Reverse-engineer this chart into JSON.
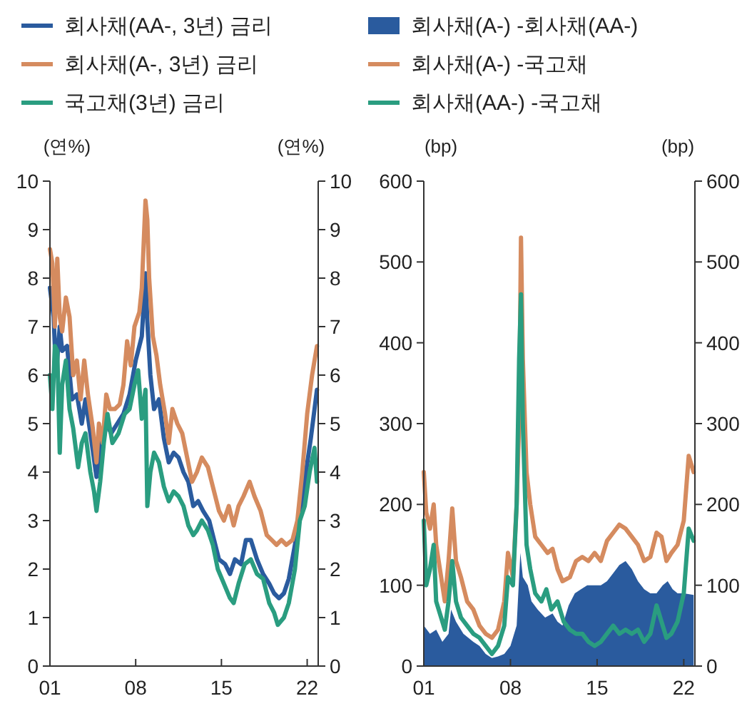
{
  "chart_data": [
    {
      "type": "line",
      "ylabel": "(연%)",
      "y2label": "(연%)",
      "legend": "top",
      "grid": false,
      "xlim": [
        2001,
        2022.9
      ],
      "xticks": [
        {
          "value": 2001,
          "label": "01"
        },
        {
          "value": 2008,
          "label": "08"
        },
        {
          "value": 2015,
          "label": "15"
        },
        {
          "value": 2022,
          "label": "22"
        }
      ],
      "ylim": [
        0,
        10
      ],
      "yticks": [
        0,
        1,
        2,
        3,
        4,
        5,
        6,
        7,
        8,
        9,
        10
      ],
      "y2lim": [
        0,
        10
      ],
      "y2ticks": [
        0,
        1,
        2,
        3,
        4,
        5,
        6,
        7,
        8,
        9,
        10
      ],
      "series": [
        {
          "name": "회사채(AA-, 3년) 금리",
          "color": "#2a5b9e",
          "x": [
            2001.0,
            2001.3,
            2001.5,
            2001.8,
            2002.0,
            2002.4,
            2002.8,
            2003.2,
            2003.6,
            2003.9,
            2004.3,
            2004.8,
            2005.2,
            2005.6,
            2006.0,
            2006.5,
            2007.0,
            2007.5,
            2008.0,
            2008.5,
            2008.8,
            2008.95,
            2009.2,
            2009.5,
            2009.9,
            2010.3,
            2010.7,
            2011.1,
            2011.5,
            2011.9,
            2012.3,
            2012.7,
            2013.1,
            2013.5,
            2014.0,
            2014.4,
            2014.8,
            2015.3,
            2015.7,
            2016.1,
            2016.6,
            2017.0,
            2017.4,
            2017.9,
            2018.4,
            2018.9,
            2019.3,
            2019.7,
            2020.1,
            2020.5,
            2021.0,
            2021.5,
            2021.9,
            2022.3,
            2022.8
          ],
          "values": [
            7.8,
            7.2,
            6.0,
            7.0,
            6.5,
            6.6,
            5.5,
            5.6,
            5.0,
            5.5,
            4.8,
            3.9,
            4.6,
            5.0,
            4.8,
            5.0,
            5.2,
            5.6,
            6.3,
            6.8,
            8.1,
            7.1,
            6.0,
            5.3,
            5.5,
            4.7,
            4.2,
            4.4,
            4.3,
            4.0,
            3.8,
            3.3,
            3.4,
            3.2,
            3.0,
            2.6,
            2.2,
            2.1,
            1.9,
            2.2,
            2.1,
            2.6,
            2.6,
            2.2,
            1.9,
            1.7,
            1.5,
            1.4,
            1.5,
            1.8,
            2.5,
            3.2,
            4.0,
            4.7,
            5.7
          ]
        },
        {
          "name": "회사채(A-, 3년) 금리",
          "color": "#d58b5f",
          "x": [
            2001.0,
            2001.2,
            2001.4,
            2001.6,
            2001.8,
            2002.0,
            2002.3,
            2002.6,
            2002.9,
            2003.2,
            2003.5,
            2003.8,
            2004.1,
            2004.5,
            2004.8,
            2005.0,
            2005.3,
            2005.6,
            2005.9,
            2006.3,
            2006.7,
            2007.0,
            2007.3,
            2007.6,
            2007.9,
            2008.3,
            2008.5,
            2008.8,
            2008.95,
            2009.1,
            2009.4,
            2009.7,
            2010.0,
            2010.4,
            2010.7,
            2011.0,
            2011.4,
            2011.8,
            2012.2,
            2012.6,
            2013.0,
            2013.4,
            2013.9,
            2014.3,
            2014.8,
            2015.2,
            2015.6,
            2016.0,
            2016.4,
            2016.8,
            2017.3,
            2017.7,
            2018.2,
            2018.7,
            2019.1,
            2019.5,
            2019.9,
            2020.3,
            2020.8,
            2021.2,
            2021.6,
            2022.0,
            2022.4,
            2022.8
          ],
          "values": [
            8.6,
            8.3,
            7.0,
            8.4,
            7.2,
            6.9,
            7.6,
            7.2,
            6.0,
            6.3,
            5.5,
            6.3,
            5.6,
            4.9,
            4.2,
            5.0,
            4.6,
            5.6,
            5.3,
            5.3,
            5.4,
            5.8,
            6.7,
            6.2,
            7.0,
            7.3,
            7.8,
            9.6,
            9.2,
            8.0,
            6.8,
            6.4,
            5.8,
            5.2,
            4.6,
            5.3,
            5.0,
            4.8,
            4.3,
            3.8,
            4.0,
            4.3,
            4.1,
            3.7,
            3.2,
            3.0,
            3.3,
            2.9,
            3.3,
            3.5,
            3.8,
            3.5,
            3.2,
            2.7,
            2.6,
            2.5,
            2.6,
            2.5,
            2.6,
            3.0,
            4.0,
            5.2,
            6.0,
            6.6
          ]
        },
        {
          "name": "국고채(3년) 금리",
          "color": "#2a9d80",
          "x": [
            2001.0,
            2001.2,
            2001.4,
            2001.6,
            2001.8,
            2002.0,
            2002.3,
            2002.6,
            2002.9,
            2003.3,
            2003.6,
            2003.9,
            2004.3,
            2004.6,
            2004.8,
            2005.1,
            2005.4,
            2005.7,
            2006.1,
            2006.6,
            2007.1,
            2007.5,
            2007.9,
            2008.2,
            2008.5,
            2008.8,
            2008.95,
            2009.2,
            2009.5,
            2009.9,
            2010.3,
            2010.7,
            2011.1,
            2011.5,
            2011.9,
            2012.3,
            2012.7,
            2013.0,
            2013.4,
            2013.9,
            2014.3,
            2014.7,
            2015.2,
            2015.7,
            2016.0,
            2016.4,
            2016.9,
            2017.4,
            2017.9,
            2018.4,
            2018.9,
            2019.3,
            2019.6,
            2020.1,
            2020.5,
            2021.0,
            2021.4,
            2021.8,
            2022.2,
            2022.6,
            2022.8
          ],
          "values": [
            6.0,
            5.3,
            6.6,
            6.5,
            4.4,
            5.8,
            6.3,
            5.3,
            4.9,
            4.1,
            4.6,
            4.8,
            4.0,
            3.6,
            3.2,
            3.8,
            4.6,
            5.2,
            4.6,
            4.8,
            5.2,
            5.3,
            5.8,
            6.1,
            5.1,
            5.7,
            3.3,
            4.0,
            4.4,
            4.2,
            3.7,
            3.4,
            3.6,
            3.5,
            3.3,
            2.9,
            2.7,
            2.8,
            3.0,
            2.8,
            2.5,
            2.0,
            1.7,
            1.4,
            1.3,
            1.7,
            2.1,
            2.2,
            1.9,
            1.8,
            1.3,
            1.1,
            0.85,
            1.0,
            1.3,
            2.0,
            3.0,
            3.3,
            4.0,
            4.5,
            3.8
          ]
        }
      ]
    },
    {
      "type": "line",
      "ylabel": "(bp)",
      "y2label": "(bp)",
      "legend": "top",
      "grid": false,
      "xlim": [
        2001,
        2022.9
      ],
      "xticks": [
        {
          "value": 2001,
          "label": "01"
        },
        {
          "value": 2008,
          "label": "08"
        },
        {
          "value": 2015,
          "label": "15"
        },
        {
          "value": 2022,
          "label": "22"
        }
      ],
      "ylim": [
        0,
        600
      ],
      "yticks": [
        0,
        100,
        200,
        300,
        400,
        500,
        600
      ],
      "y2lim": [
        0,
        600
      ],
      "y2ticks": [
        0,
        100,
        200,
        300,
        400,
        500,
        600
      ],
      "series": [
        {
          "name": "회사채(A-) -회사채(AA-)",
          "type": "area",
          "color": "#2a5b9e",
          "x": [
            2001.0,
            2001.5,
            2002.0,
            2002.5,
            2003.0,
            2003.2,
            2003.6,
            2004.2,
            2005.0,
            2005.5,
            2006.0,
            2006.5,
            2007.0,
            2007.5,
            2008.0,
            2008.5,
            2008.8,
            2009.0,
            2009.4,
            2009.7,
            2010.2,
            2010.8,
            2011.4,
            2011.8,
            2012.2,
            2012.7,
            2013.2,
            2013.7,
            2014.2,
            2014.8,
            2015.3,
            2015.8,
            2016.3,
            2016.8,
            2017.3,
            2017.8,
            2018.3,
            2018.8,
            2019.3,
            2019.8,
            2020.3,
            2020.7,
            2021.1,
            2021.5,
            2022.0,
            2022.8
          ],
          "values": [
            50,
            40,
            45,
            30,
            40,
            70,
            55,
            40,
            30,
            25,
            15,
            10,
            12,
            15,
            25,
            50,
            140,
            110,
            100,
            80,
            70,
            60,
            65,
            55,
            50,
            75,
            90,
            95,
            100,
            100,
            100,
            105,
            115,
            125,
            130,
            120,
            105,
            95,
            90,
            90,
            100,
            105,
            95,
            90,
            90,
            88
          ]
        },
        {
          "name": "회사채(A-) -국고채",
          "color": "#d58b5f",
          "x": [
            2001.0,
            2001.2,
            2001.5,
            2001.8,
            2002.0,
            2002.4,
            2002.7,
            2003.0,
            2003.3,
            2003.6,
            2004.0,
            2004.5,
            2005.0,
            2005.5,
            2006.0,
            2006.5,
            2007.0,
            2007.5,
            2007.8,
            2008.2,
            2008.5,
            2008.7,
            2008.85,
            2009.0,
            2009.3,
            2009.6,
            2010.0,
            2010.5,
            2011.0,
            2011.4,
            2011.8,
            2012.2,
            2012.8,
            2013.3,
            2013.8,
            2014.3,
            2014.8,
            2015.3,
            2015.8,
            2016.3,
            2016.8,
            2017.3,
            2017.8,
            2018.3,
            2018.8,
            2019.3,
            2019.8,
            2020.2,
            2020.6,
            2021.0,
            2021.5,
            2022.0,
            2022.4,
            2022.8
          ],
          "values": [
            240,
            190,
            170,
            200,
            150,
            110,
            80,
            130,
            195,
            130,
            110,
            80,
            70,
            50,
            40,
            35,
            45,
            80,
            140,
            110,
            200,
            300,
            530,
            380,
            240,
            200,
            160,
            150,
            140,
            145,
            120,
            105,
            110,
            130,
            135,
            130,
            140,
            130,
            155,
            165,
            175,
            170,
            160,
            150,
            130,
            135,
            165,
            160,
            130,
            140,
            150,
            180,
            260,
            240
          ]
        },
        {
          "name": "회사채(AA-) -국고채",
          "color": "#2a9d80",
          "x": [
            2001.0,
            2001.2,
            2001.5,
            2001.8,
            2002.0,
            2002.4,
            2002.7,
            2003.0,
            2003.3,
            2003.6,
            2004.0,
            2004.5,
            2005.0,
            2005.5,
            2006.0,
            2006.5,
            2007.0,
            2007.5,
            2007.8,
            2008.2,
            2008.5,
            2008.7,
            2008.85,
            2009.0,
            2009.3,
            2009.6,
            2010.0,
            2010.5,
            2010.9,
            2011.3,
            2011.8,
            2012.3,
            2012.8,
            2013.3,
            2013.8,
            2014.3,
            2014.8,
            2015.3,
            2015.8,
            2016.3,
            2016.8,
            2017.3,
            2017.8,
            2018.3,
            2018.8,
            2019.3,
            2019.8,
            2020.2,
            2020.6,
            2021.0,
            2021.5,
            2022.0,
            2022.4,
            2022.8
          ],
          "values": [
            180,
            100,
            120,
            150,
            80,
            60,
            45,
            80,
            130,
            80,
            60,
            50,
            40,
            35,
            25,
            15,
            25,
            50,
            110,
            100,
            200,
            380,
            460,
            300,
            150,
            120,
            90,
            80,
            95,
            70,
            80,
            55,
            45,
            40,
            40,
            30,
            25,
            30,
            40,
            50,
            40,
            45,
            40,
            45,
            30,
            40,
            75,
            55,
            35,
            40,
            55,
            90,
            170,
            155
          ]
        }
      ]
    }
  ]
}
